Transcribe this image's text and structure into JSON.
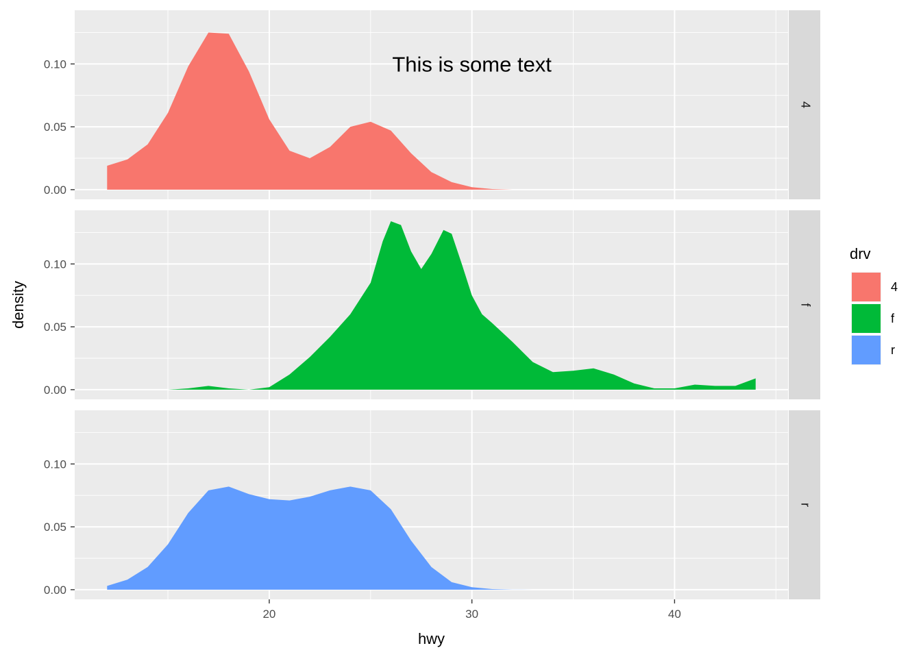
{
  "chart_data": {
    "type": "area",
    "plot_kind": "faceted density",
    "facet_by": "drv",
    "xlabel": "hwy",
    "ylabel": "density",
    "xlim": [
      10.4,
      45.6
    ],
    "ylim": [
      -0.0077,
      0.1427
    ],
    "x_ticks": [
      20,
      30,
      40
    ],
    "x_tick_labels": [
      "20",
      "30",
      "40"
    ],
    "x_minor_ticks": [
      15,
      25,
      35,
      45
    ],
    "y_ticks": [
      0.0,
      0.05,
      0.1
    ],
    "y_tick_labels": [
      "0.00",
      "0.05",
      "0.10"
    ],
    "y_minor_ticks": [
      0.025,
      0.075,
      0.125
    ],
    "annotation": {
      "text": "This is some text",
      "x": 30,
      "y": 0.1,
      "facet": "4"
    },
    "legend": {
      "title": "drv",
      "position": "right",
      "entries": [
        {
          "label": "4",
          "color": "#F8766D"
        },
        {
          "label": "f",
          "color": "#00BA38"
        },
        {
          "label": "r",
          "color": "#619CFF"
        }
      ]
    },
    "panel_background": "#EBEBEB",
    "strip_background": "#D9D9D9",
    "grid": true,
    "series": [
      {
        "facet": "4",
        "color": "#F8766D",
        "x": [
          12,
          13,
          14,
          15,
          16,
          17,
          18,
          19,
          20,
          21,
          22,
          23,
          24,
          25,
          26,
          27,
          28,
          29,
          30,
          31,
          32
        ],
        "y": [
          0.019,
          0.024,
          0.036,
          0.061,
          0.098,
          0.125,
          0.124,
          0.094,
          0.056,
          0.031,
          0.025,
          0.034,
          0.05,
          0.054,
          0.047,
          0.029,
          0.014,
          0.006,
          0.002,
          0.0005,
          0.0
        ]
      },
      {
        "facet": "f",
        "color": "#00BA38",
        "x": [
          13,
          15,
          16,
          17,
          18,
          19,
          20,
          21,
          22,
          23,
          24,
          25,
          25.6,
          26,
          26.5,
          27,
          27.5,
          28,
          28.6,
          29,
          29.5,
          30,
          30.5,
          31,
          32,
          33,
          34,
          35,
          36,
          37,
          38,
          39,
          40,
          41,
          42,
          43,
          44
        ],
        "y": [
          0.0,
          0.0,
          0.001,
          0.003,
          0.001,
          0.0,
          0.002,
          0.012,
          0.026,
          0.042,
          0.06,
          0.085,
          0.118,
          0.134,
          0.131,
          0.11,
          0.096,
          0.108,
          0.127,
          0.124,
          0.1,
          0.075,
          0.06,
          0.053,
          0.038,
          0.022,
          0.014,
          0.015,
          0.017,
          0.012,
          0.005,
          0.001,
          0.001,
          0.004,
          0.003,
          0.003,
          0.009
        ]
      },
      {
        "facet": "r",
        "color": "#619CFF",
        "x": [
          12,
          13,
          14,
          15,
          16,
          17,
          18,
          19,
          20,
          21,
          22,
          23,
          24,
          25,
          26,
          27,
          28,
          29,
          30,
          31,
          32,
          33
        ],
        "y": [
          0.003,
          0.008,
          0.018,
          0.036,
          0.061,
          0.079,
          0.082,
          0.076,
          0.072,
          0.071,
          0.074,
          0.079,
          0.082,
          0.079,
          0.064,
          0.039,
          0.018,
          0.006,
          0.002,
          0.0005,
          0.0001,
          0.0
        ]
      }
    ]
  }
}
